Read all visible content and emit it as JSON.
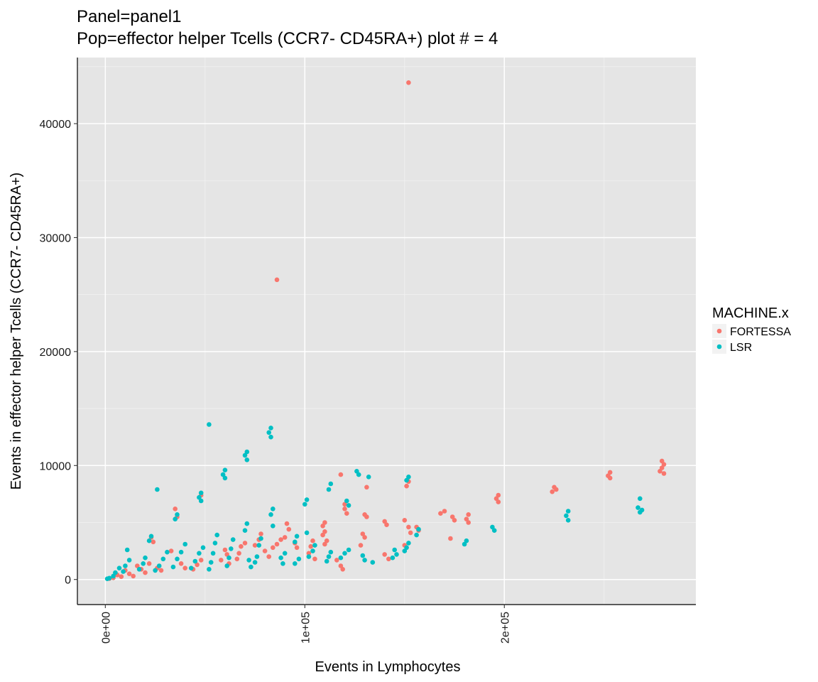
{
  "chart_data": {
    "type": "scatter",
    "title": "Panel=panel1",
    "subtitle": "Pop=effector helper Tcells (CCR7- CD45RA+) plot # = 4",
    "xlabel": "Events in Lymphocytes",
    "ylabel": "Events in effector helper Tcells (CCR7- CD45RA+)",
    "xlim": [
      -14000,
      296000
    ],
    "ylim": [
      -2200,
      45800
    ],
    "x_ticks": [
      0,
      100000,
      200000
    ],
    "x_tick_labels": [
      "0e+00",
      "1e+05",
      "2e+05"
    ],
    "y_ticks": [
      0,
      10000,
      20000,
      30000,
      40000
    ],
    "y_tick_labels": [
      "0",
      "10000",
      "20000",
      "30000",
      "40000"
    ],
    "grid": true,
    "legend": {
      "title": "MACHINE.x",
      "position": "right",
      "entries": [
        "FORTESSA",
        "LSR"
      ]
    },
    "series": [
      {
        "name": "FORTESSA",
        "color": "#F8766D",
        "points": [
          [
            152000,
            43600
          ],
          [
            86000,
            26300
          ],
          [
            279000,
            10400
          ],
          [
            280000,
            10100
          ],
          [
            279000,
            9800
          ],
          [
            278000,
            9500
          ],
          [
            280000,
            9300
          ],
          [
            253000,
            9400
          ],
          [
            252000,
            9100
          ],
          [
            253000,
            8900
          ],
          [
            225000,
            8100
          ],
          [
            226000,
            7900
          ],
          [
            224000,
            7700
          ],
          [
            197000,
            7400
          ],
          [
            196000,
            7100
          ],
          [
            197000,
            6800
          ],
          [
            170000,
            6000
          ],
          [
            168000,
            5800
          ],
          [
            174000,
            5500
          ],
          [
            175000,
            5200
          ],
          [
            173000,
            3600
          ],
          [
            182000,
            5700
          ],
          [
            181000,
            5300
          ],
          [
            182000,
            5000
          ],
          [
            152000,
            8600
          ],
          [
            151000,
            8200
          ],
          [
            150000,
            5200
          ],
          [
            152000,
            4600
          ],
          [
            153000,
            4100
          ],
          [
            150000,
            3000
          ],
          [
            156000,
            4600
          ],
          [
            157000,
            4300
          ],
          [
            118000,
            9200
          ],
          [
            120000,
            6600
          ],
          [
            120000,
            6200
          ],
          [
            121000,
            5800
          ],
          [
            130000,
            5700
          ],
          [
            131000,
            5500
          ],
          [
            129000,
            4000
          ],
          [
            130000,
            3700
          ],
          [
            128000,
            3000
          ],
          [
            131000,
            8100
          ],
          [
            140000,
            5100
          ],
          [
            141000,
            4800
          ],
          [
            140000,
            2200
          ],
          [
            142000,
            1800
          ],
          [
            110000,
            5000
          ],
          [
            109000,
            4700
          ],
          [
            110000,
            4200
          ],
          [
            109000,
            3900
          ],
          [
            111000,
            3400
          ],
          [
            110000,
            3100
          ],
          [
            116000,
            1700
          ],
          [
            118000,
            1200
          ],
          [
            119000,
            900
          ],
          [
            104000,
            3400
          ],
          [
            103000,
            2900
          ],
          [
            102000,
            2300
          ],
          [
            105000,
            1800
          ],
          [
            91000,
            4900
          ],
          [
            92000,
            4400
          ],
          [
            90000,
            3700
          ],
          [
            95000,
            3200
          ],
          [
            96000,
            2800
          ],
          [
            88000,
            3500
          ],
          [
            86000,
            3100
          ],
          [
            84000,
            2800
          ],
          [
            78000,
            4000
          ],
          [
            77000,
            3500
          ],
          [
            75000,
            3000
          ],
          [
            80000,
            2500
          ],
          [
            82000,
            2000
          ],
          [
            70000,
            3200
          ],
          [
            68000,
            2900
          ],
          [
            67000,
            2300
          ],
          [
            66000,
            1800
          ],
          [
            60000,
            2600
          ],
          [
            61000,
            2200
          ],
          [
            58000,
            1700
          ],
          [
            62000,
            1400
          ],
          [
            48000,
            7400
          ],
          [
            48000,
            1700
          ],
          [
            46000,
            1300
          ],
          [
            44000,
            900
          ],
          [
            35000,
            6200
          ],
          [
            36000,
            5500
          ],
          [
            33000,
            2500
          ],
          [
            38000,
            1400
          ],
          [
            40000,
            1000
          ],
          [
            23000,
            3700
          ],
          [
            24000,
            3300
          ],
          [
            22000,
            1400
          ],
          [
            26000,
            1000
          ],
          [
            28000,
            800
          ],
          [
            16000,
            1200
          ],
          [
            18000,
            900
          ],
          [
            20000,
            600
          ],
          [
            10000,
            800
          ],
          [
            12000,
            500
          ],
          [
            14000,
            300
          ],
          [
            6000,
            400
          ],
          [
            8000,
            250
          ],
          [
            4000,
            150
          ],
          [
            2000,
            80
          ]
        ]
      },
      {
        "name": "LSR",
        "color": "#00BFC4",
        "points": [
          [
            52000,
            13600
          ],
          [
            83000,
            13300
          ],
          [
            82000,
            12900
          ],
          [
            83000,
            12500
          ],
          [
            71000,
            11200
          ],
          [
            70000,
            10900
          ],
          [
            71000,
            10500
          ],
          [
            60000,
            9600
          ],
          [
            59000,
            9200
          ],
          [
            60000,
            8900
          ],
          [
            48000,
            7600
          ],
          [
            47000,
            7200
          ],
          [
            48000,
            6900
          ],
          [
            26000,
            7900
          ],
          [
            36000,
            5700
          ],
          [
            35000,
            5300
          ],
          [
            23000,
            3800
          ],
          [
            22000,
            3400
          ],
          [
            126000,
            9500
          ],
          [
            127000,
            9200
          ],
          [
            132000,
            9000
          ],
          [
            113000,
            8400
          ],
          [
            112000,
            7900
          ],
          [
            121000,
            6900
          ],
          [
            122000,
            6500
          ],
          [
            101000,
            7000
          ],
          [
            100000,
            6600
          ],
          [
            101000,
            4100
          ],
          [
            152000,
            9000
          ],
          [
            151000,
            8700
          ],
          [
            157000,
            4400
          ],
          [
            156000,
            3900
          ],
          [
            152000,
            3200
          ],
          [
            151000,
            2800
          ],
          [
            150000,
            2500
          ],
          [
            145000,
            2600
          ],
          [
            146000,
            2200
          ],
          [
            144000,
            1900
          ],
          [
            129000,
            2100
          ],
          [
            130000,
            1700
          ],
          [
            134000,
            1500
          ],
          [
            122000,
            2600
          ],
          [
            120000,
            2300
          ],
          [
            118000,
            1900
          ],
          [
            113000,
            2400
          ],
          [
            112000,
            2000
          ],
          [
            111000,
            1600
          ],
          [
            105000,
            3000
          ],
          [
            104000,
            2500
          ],
          [
            102000,
            2000
          ],
          [
            96000,
            3800
          ],
          [
            95000,
            3300
          ],
          [
            97000,
            1800
          ],
          [
            95000,
            1400
          ],
          [
            90000,
            2300
          ],
          [
            88000,
            1900
          ],
          [
            89000,
            1400
          ],
          [
            84000,
            6200
          ],
          [
            83000,
            5700
          ],
          [
            84000,
            4700
          ],
          [
            78000,
            3600
          ],
          [
            77000,
            3000
          ],
          [
            76000,
            2000
          ],
          [
            75000,
            1500
          ],
          [
            71000,
            4900
          ],
          [
            70000,
            4300
          ],
          [
            72000,
            1700
          ],
          [
            73000,
            1100
          ],
          [
            64000,
            3500
          ],
          [
            63000,
            2700
          ],
          [
            62000,
            1900
          ],
          [
            61000,
            1200
          ],
          [
            56000,
            3900
          ],
          [
            55000,
            3200
          ],
          [
            54000,
            2300
          ],
          [
            53000,
            1500
          ],
          [
            52000,
            900
          ],
          [
            49000,
            2800
          ],
          [
            47000,
            2300
          ],
          [
            45000,
            1600
          ],
          [
            43000,
            1000
          ],
          [
            40000,
            3100
          ],
          [
            38000,
            2400
          ],
          [
            36000,
            1800
          ],
          [
            34000,
            1100
          ],
          [
            31000,
            2400
          ],
          [
            29000,
            1800
          ],
          [
            27000,
            1200
          ],
          [
            25000,
            800
          ],
          [
            20000,
            1900
          ],
          [
            19000,
            1400
          ],
          [
            17000,
            900
          ],
          [
            11000,
            2600
          ],
          [
            12000,
            1700
          ],
          [
            10000,
            1200
          ],
          [
            9000,
            700
          ],
          [
            7000,
            1000
          ],
          [
            5000,
            600
          ],
          [
            4000,
            300
          ],
          [
            2000,
            120
          ],
          [
            1000,
            60
          ],
          [
            232000,
            6000
          ],
          [
            231000,
            5600
          ],
          [
            232000,
            5200
          ],
          [
            194000,
            4600
          ],
          [
            195000,
            4300
          ],
          [
            181000,
            3400
          ],
          [
            180000,
            3100
          ],
          [
            268000,
            7100
          ],
          [
            267000,
            6300
          ],
          [
            269000,
            6100
          ],
          [
            268000,
            5900
          ]
        ]
      }
    ]
  }
}
